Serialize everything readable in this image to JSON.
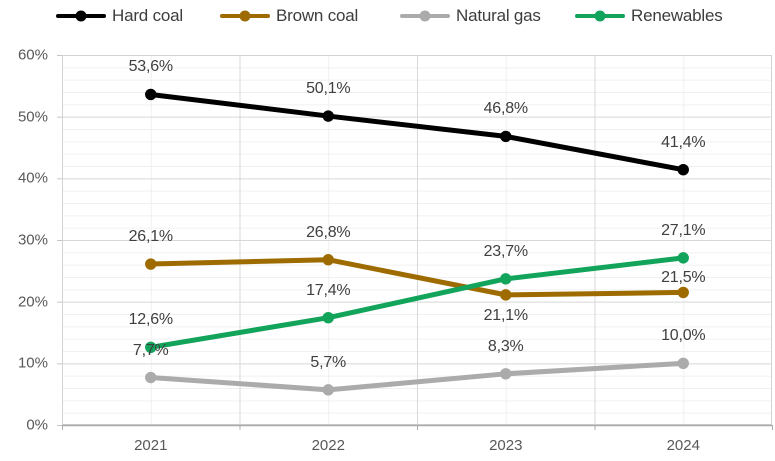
{
  "chart_data": {
    "type": "line",
    "title": "",
    "x": [
      "2021",
      "2022",
      "2023",
      "2024"
    ],
    "series": [
      {
        "name": "Hard coal",
        "color": "#000000",
        "values": [
          53.6,
          50.1,
          46.8,
          41.4
        ],
        "labels": [
          "53,6%",
          "50,1%",
          "46,8%",
          "41,4%"
        ],
        "label_placement": [
          "above",
          "above",
          "above",
          "above"
        ]
      },
      {
        "name": "Brown coal",
        "color": "#9e6b00",
        "values": [
          26.1,
          26.8,
          21.1,
          21.5
        ],
        "labels": [
          "26,1%",
          "26,8%",
          "21,1%",
          "21,5%"
        ],
        "label_placement": [
          "above",
          "above",
          "below",
          "close-above"
        ]
      },
      {
        "name": "Natural gas",
        "color": "#ababab",
        "values": [
          7.7,
          5.7,
          8.3,
          10.0
        ],
        "labels": [
          "7,7%",
          "5,7%",
          "8,3%",
          "10,0%"
        ],
        "label_placement": [
          "above",
          "above",
          "above",
          "above"
        ]
      },
      {
        "name": "Renewables",
        "color": "#12a45b",
        "values": [
          12.6,
          17.4,
          23.7,
          27.1
        ],
        "labels": [
          "12,6%",
          "17,4%",
          "23,7%",
          "27,1%"
        ],
        "label_placement": [
          "above",
          "above",
          "above",
          "above"
        ]
      }
    ],
    "y_axis": {
      "min": 0,
      "max": 60,
      "major_step": 10,
      "minor_step": 2,
      "tick_labels": [
        "0%",
        "10%",
        "20%",
        "30%",
        "40%",
        "50%",
        "60%"
      ]
    },
    "legend": {
      "position": "top",
      "items": [
        "Hard coal",
        "Brown coal",
        "Natural gas",
        "Renewables"
      ]
    },
    "grid": {
      "horizontal_major": true,
      "horizontal_minor": true,
      "vertical_major": true,
      "vertical_minor": true
    },
    "colors": {
      "grid_minor": "#f0f0f0",
      "grid_major": "#d8d8d8",
      "plot_border": "#d2d2d2",
      "axis_line": "#acacac",
      "axis_text": "#595959",
      "data_label_text": "#404040",
      "legend_text": "#3d3d3d",
      "background": "#ffffff"
    }
  }
}
